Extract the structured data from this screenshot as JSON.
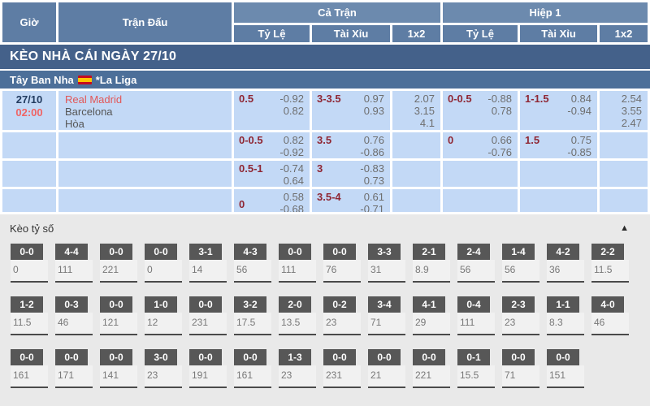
{
  "header": {
    "col_time": "Giờ",
    "col_match": "Trận Đấu",
    "group_full": "Cả Trận",
    "group_half": "Hiệp 1",
    "sub_odds": "Tỷ Lệ",
    "sub_ou": "Tài Xỉu",
    "sub_1x2": "1x2"
  },
  "banner": {
    "title": "KÈO NHÀ CÁI NGÀY 27/10"
  },
  "league": {
    "country": "Tây Ban Nha",
    "flag_icon": "spain-flag",
    "name": "*La Liga"
  },
  "match": {
    "date": "27/10",
    "time": "02:00",
    "home": "Real Madrid",
    "away": "Barcelona",
    "draw_label": "Hòa"
  },
  "odds_rows": [
    {
      "full": {
        "hdp": "0.5",
        "hdp_odds": [
          "-0.92",
          "0.82"
        ],
        "ou": "3-3.5",
        "ou_odds": [
          "0.97",
          "0.93"
        ],
        "x12": [
          "2.07",
          "3.15",
          "4.1"
        ]
      },
      "half": {
        "hdp": "0-0.5",
        "hdp_odds": [
          "-0.88",
          "0.78"
        ],
        "ou": "1-1.5",
        "ou_odds": [
          "0.84",
          "-0.94"
        ],
        "x12": [
          "2.54",
          "3.55",
          "2.47"
        ]
      }
    },
    {
      "full": {
        "hdp": "0-0.5",
        "hdp_odds": [
          "0.82",
          "-0.92"
        ],
        "ou": "3.5",
        "ou_odds": [
          "0.76",
          "-0.86"
        ],
        "x12": []
      },
      "half": {
        "hdp": "0",
        "hdp_odds": [
          "0.66",
          "-0.76"
        ],
        "ou": "1.5",
        "ou_odds": [
          "0.75",
          "-0.85"
        ],
        "x12": []
      }
    },
    {
      "full": {
        "hdp": "0.5-1",
        "hdp_odds": [
          "-0.74",
          "0.64"
        ],
        "ou": "3",
        "ou_odds": [
          "-0.83",
          "0.73"
        ],
        "x12": []
      },
      "half": {}
    },
    {
      "full": {
        "hdp": "0",
        "hdp_pos": "bottom",
        "hdp_odds": [
          "0.58",
          "-0.68"
        ],
        "ou": "3.5-4",
        "ou_odds": [
          "0.61",
          "-0.71"
        ],
        "x12": []
      },
      "half": {}
    }
  ],
  "score_section": {
    "title": "Kèo tỷ số",
    "collapse_icon": "▲",
    "rows": [
      {
        "boxes": [
          {
            "score": "0-0",
            "odds": "0"
          },
          {
            "score": "4-4",
            "odds": "111"
          },
          {
            "score": "0-0",
            "odds": "221"
          },
          {
            "score": "0-0",
            "odds": "0"
          },
          {
            "score": "3-1",
            "odds": "14"
          },
          {
            "score": "4-3",
            "odds": "56"
          },
          {
            "score": "0-0",
            "odds": "111"
          },
          {
            "score": "0-0",
            "odds": "76"
          },
          {
            "score": "3-3",
            "odds": "31"
          },
          {
            "score": "2-1",
            "odds": "8.9"
          },
          {
            "score": "2-4",
            "odds": "56"
          },
          {
            "score": "1-4",
            "odds": "56"
          },
          {
            "score": "4-2",
            "odds": "36"
          },
          {
            "score": "2-2",
            "odds": "11.5"
          }
        ]
      },
      {
        "boxes": [
          {
            "score": "1-2",
            "odds": "11.5"
          },
          {
            "score": "0-3",
            "odds": "46"
          },
          {
            "score": "0-0",
            "odds": "121"
          },
          {
            "score": "1-0",
            "odds": "12"
          },
          {
            "score": "0-0",
            "odds": "231"
          },
          {
            "score": "3-2",
            "odds": "17.5"
          },
          {
            "score": "2-0",
            "odds": "13.5"
          },
          {
            "score": "0-2",
            "odds": "23"
          },
          {
            "score": "3-4",
            "odds": "71"
          },
          {
            "score": "4-1",
            "odds": "29"
          },
          {
            "score": "0-4",
            "odds": "111"
          },
          {
            "score": "2-3",
            "odds": "23"
          },
          {
            "score": "1-1",
            "odds": "8.3"
          },
          {
            "score": "4-0",
            "odds": "46"
          }
        ]
      },
      {
        "boxes": [
          {
            "score": "0-0",
            "odds": "161"
          },
          {
            "score": "0-0",
            "odds": "171"
          },
          {
            "score": "0-0",
            "odds": "141"
          },
          {
            "score": "3-0",
            "odds": "23"
          },
          {
            "score": "0-0",
            "odds": "191"
          },
          {
            "score": "0-0",
            "odds": "161"
          },
          {
            "score": "1-3",
            "odds": "23"
          },
          {
            "score": "0-0",
            "odds": "231"
          },
          {
            "score": "0-0",
            "odds": "21"
          },
          {
            "score": "0-0",
            "odds": "221"
          },
          {
            "score": "0-1",
            "odds": "15.5"
          },
          {
            "score": "0-0",
            "odds": "71"
          },
          {
            "score": "0-0",
            "odds": "151"
          }
        ]
      }
    ]
  },
  "colors": {
    "header_blue": "#5e7da4",
    "group_blue": "#6c8aae",
    "banner_blue": "#44618a",
    "league_blue": "#4c6f99",
    "cell_blue": "#c3d9f6",
    "handicap_maroon": "#8f2734",
    "odds_gray": "#6e6e6e",
    "time_red": "#f06464",
    "home_red": "#e25757",
    "box_dark": "#575757",
    "section_gray": "#e9e9e9"
  }
}
